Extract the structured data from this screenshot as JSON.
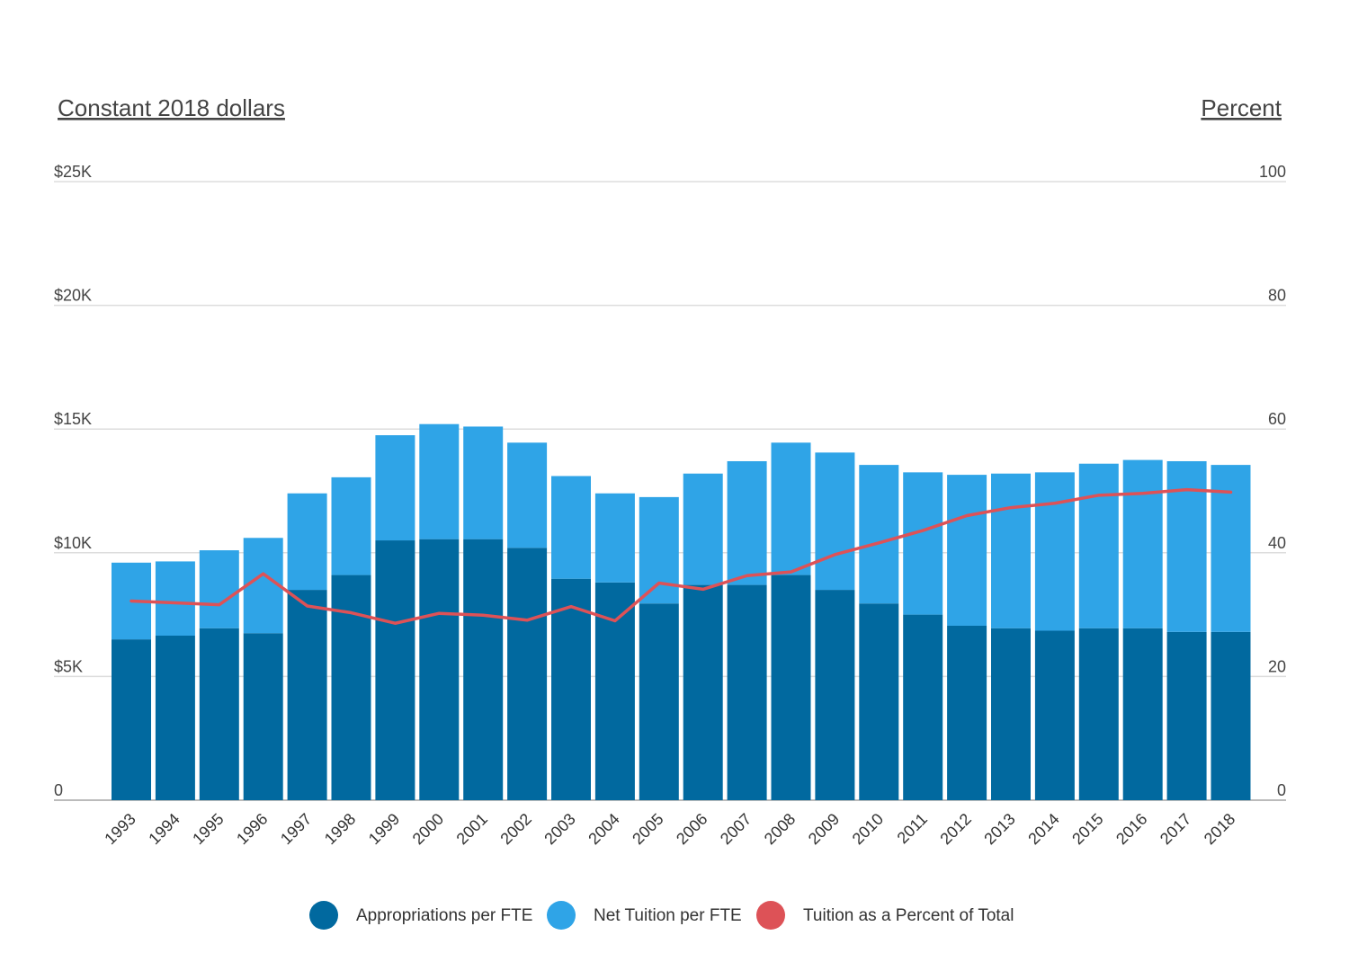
{
  "chart_data": {
    "type": "bar",
    "stacked": true,
    "categories": [
      "1993",
      "1994",
      "1995",
      "1996",
      "1997",
      "1998",
      "1999",
      "2000",
      "2001",
      "2002",
      "2003",
      "2004",
      "2005",
      "2006",
      "2007",
      "2008",
      "2009",
      "2010",
      "2011",
      "2012",
      "2013",
      "2014",
      "2015",
      "2016",
      "2017",
      "2018"
    ],
    "left_axis_title": "Constant 2018 dollars",
    "right_axis_title": "Percent",
    "left_ylim": [
      0,
      25000
    ],
    "right_ylim": [
      0,
      100
    ],
    "left_ticks": [
      {
        "value": 0,
        "label": "0"
      },
      {
        "value": 5000,
        "label": "$5K"
      },
      {
        "value": 10000,
        "label": "$10K"
      },
      {
        "value": 15000,
        "label": "$15K"
      },
      {
        "value": 20000,
        "label": "$20K"
      },
      {
        "value": 25000,
        "label": "$25K"
      }
    ],
    "right_ticks": [
      {
        "value": 0,
        "label": "0"
      },
      {
        "value": 20,
        "label": "20"
      },
      {
        "value": 40,
        "label": "40"
      },
      {
        "value": 60,
        "label": "60"
      },
      {
        "value": 80,
        "label": "80"
      },
      {
        "value": 100,
        "label": "100"
      }
    ],
    "grid": true,
    "legend_position": "bottom",
    "series": [
      {
        "name": "Appropriations per FTE",
        "type": "bar",
        "axis": "left",
        "color": "#01699f",
        "values": [
          6500,
          6650,
          6950,
          6750,
          8500,
          9100,
          10500,
          10550,
          10550,
          10200,
          8950,
          8800,
          7950,
          8700,
          8700,
          9100,
          8500,
          7950,
          7500,
          7050,
          6950,
          6850,
          6950,
          6950,
          6800,
          6800
        ]
      },
      {
        "name": "Net Tuition per FTE",
        "type": "bar",
        "axis": "left",
        "color": "#2fa4e7",
        "values": [
          3100,
          3000,
          3150,
          3850,
          3900,
          3950,
          4250,
          4650,
          4550,
          4250,
          4150,
          3600,
          4300,
          4500,
          5000,
          5350,
          5550,
          5600,
          5750,
          6100,
          6250,
          6400,
          6650,
          6800,
          6900,
          6750
        ]
      },
      {
        "name": "Tuition as a Percent of Total",
        "type": "line",
        "axis": "right",
        "color": "#dd5257",
        "values": [
          32.2,
          31.9,
          31.6,
          36.6,
          31.4,
          30.3,
          28.6,
          30.2,
          29.9,
          29.1,
          31.3,
          29.0,
          35.1,
          34.1,
          36.3,
          36.9,
          39.7,
          41.6,
          43.6,
          46.0,
          47.3,
          48.0,
          49.3,
          49.6,
          50.2,
          49.8
        ]
      }
    ]
  }
}
